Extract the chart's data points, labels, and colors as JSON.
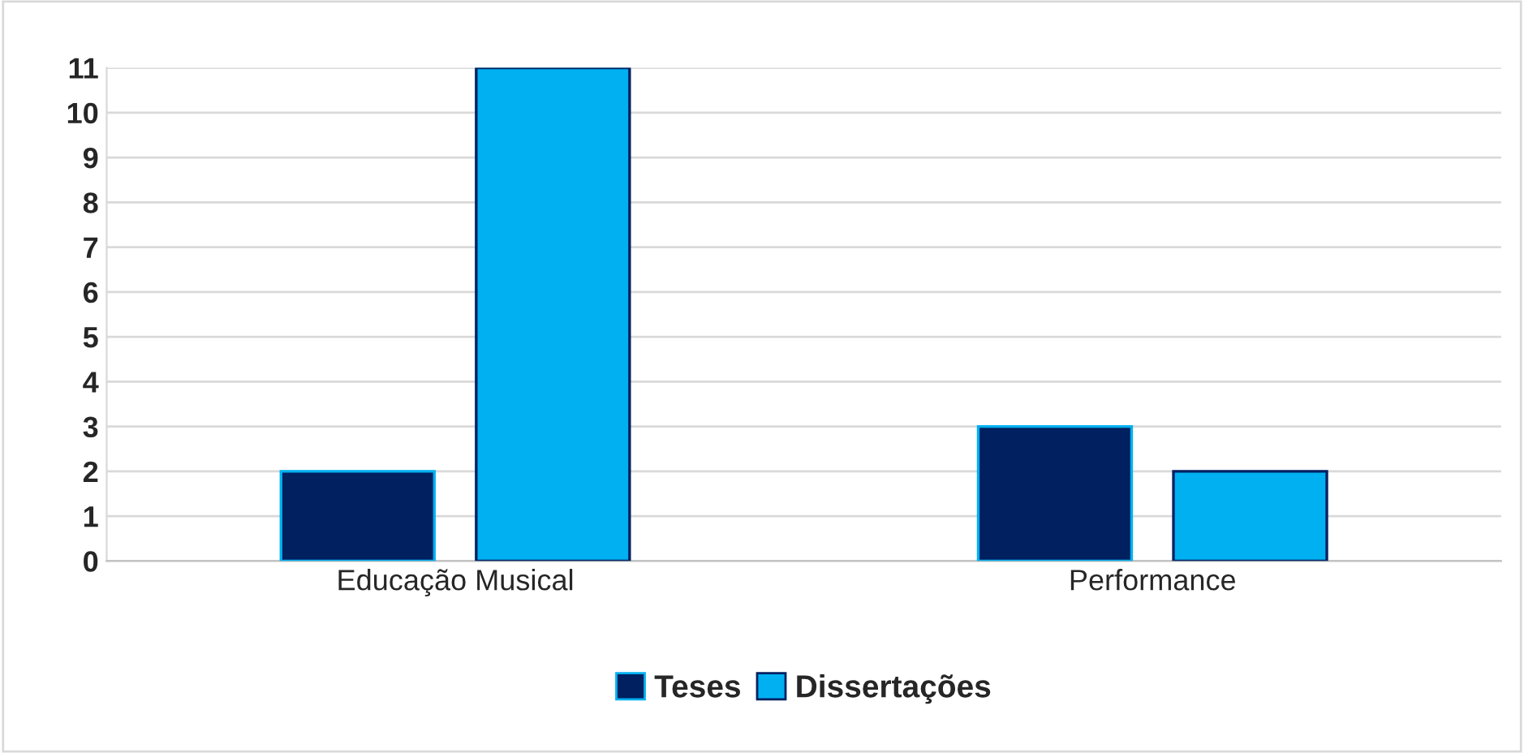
{
  "chart_data": {
    "type": "bar",
    "categories": [
      "Educação Musical",
      "Performance"
    ],
    "series": [
      {
        "name": "Teses",
        "color": "#002060",
        "values": [
          2,
          3
        ]
      },
      {
        "name": "Dissertações",
        "color": "#00b0f0",
        "values": [
          11,
          2
        ]
      }
    ],
    "ylim": [
      0,
      11
    ],
    "yticks": [
      0,
      1,
      2,
      3,
      4,
      5,
      6,
      7,
      8,
      9,
      10,
      11
    ],
    "grid": "y",
    "legend": "bottom"
  }
}
